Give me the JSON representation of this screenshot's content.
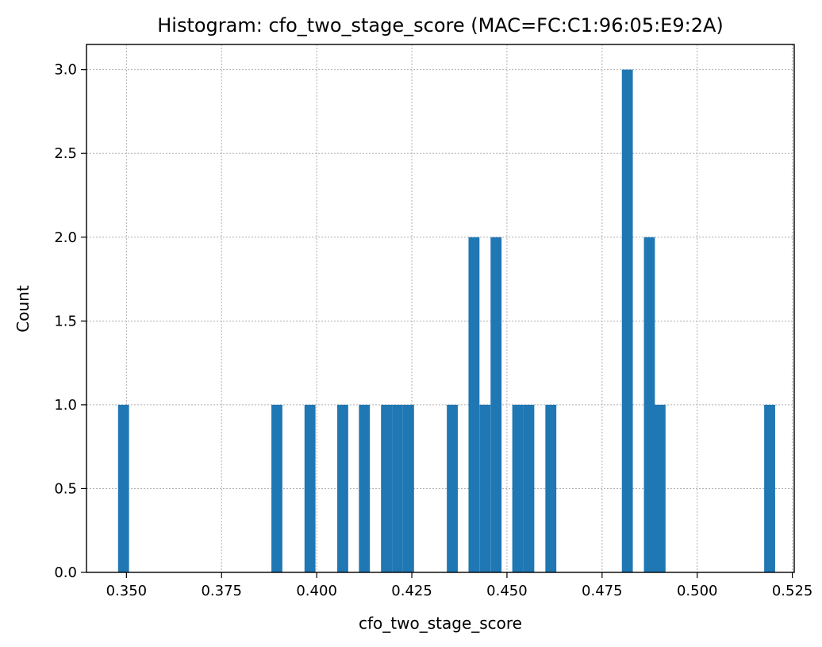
{
  "chart_data": {
    "type": "bar",
    "title": "Histogram: cfo_two_stage_score (MAC=FC:C1:96:05:E9:2A)",
    "xlabel": "cfo_two_stage_score",
    "ylabel": "Count",
    "xlim": [
      0.3395,
      0.5255
    ],
    "ylim": [
      0,
      3.15
    ],
    "xticks": [
      0.35,
      0.375,
      0.4,
      0.425,
      0.45,
      0.475,
      0.5,
      0.525
    ],
    "xtick_labels": [
      "0.350",
      "0.375",
      "0.400",
      "0.425",
      "0.450",
      "0.475",
      "0.500",
      "0.525"
    ],
    "yticks": [
      0,
      0.5,
      1,
      1.5,
      2,
      2.5,
      3
    ],
    "ytick_labels": [
      "0.0",
      "0.5",
      "1.0",
      "1.5",
      "2.0",
      "2.5",
      "3.0"
    ],
    "grid": true,
    "color": "#1f77b4",
    "bin_width": 0.00288,
    "bins": [
      {
        "x0": 0.3478,
        "count": 1
      },
      {
        "x0": 0.3881,
        "count": 1
      },
      {
        "x0": 0.3968,
        "count": 1
      },
      {
        "x0": 0.4054,
        "count": 1
      },
      {
        "x0": 0.4111,
        "count": 1
      },
      {
        "x0": 0.4169,
        "count": 1
      },
      {
        "x0": 0.4198,
        "count": 1
      },
      {
        "x0": 0.4227,
        "count": 1
      },
      {
        "x0": 0.4342,
        "count": 1
      },
      {
        "x0": 0.4399,
        "count": 2
      },
      {
        "x0": 0.4428,
        "count": 1
      },
      {
        "x0": 0.4457,
        "count": 2
      },
      {
        "x0": 0.4514,
        "count": 1
      },
      {
        "x0": 0.4543,
        "count": 1
      },
      {
        "x0": 0.4601,
        "count": 1
      },
      {
        "x0": 0.4802,
        "count": 3
      },
      {
        "x0": 0.486,
        "count": 2
      },
      {
        "x0": 0.4888,
        "count": 1
      },
      {
        "x0": 0.5176,
        "count": 1
      }
    ]
  }
}
